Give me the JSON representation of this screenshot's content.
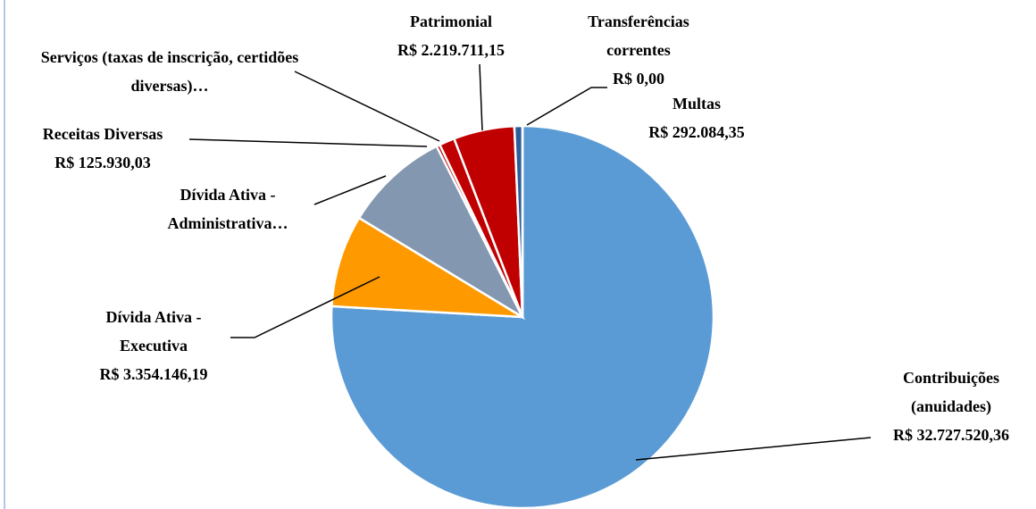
{
  "chart_data": {
    "type": "pie",
    "categories": [
      "Contribuições (anuidades)",
      "Dívida Ativa - Executiva",
      "Dívida Ativa - Administrativa…",
      "Receitas Diversas",
      "Serviços (taxas de inscrição, certidões diversas)…",
      "Patrimonial",
      "Multas",
      "Transferências correntes"
    ],
    "values": [
      32727520.36,
      3354146.19,
      3840000,
      125930.03,
      560000,
      2219711.15,
      292084.35,
      0
    ],
    "value_labels": [
      "R$ 32.727.520,36",
      "R$ 3.354.146,19",
      null,
      "R$ 125.930,03",
      null,
      "R$ 2.219.711,15",
      "R$ 292.084,35",
      "R$ 0,00"
    ],
    "colors": [
      "#5b9bd5",
      "#ff9900",
      "#8497b0",
      "#c00000",
      "#c00000",
      "#c00000",
      "#2e5c9a",
      "#44546a"
    ]
  }
}
